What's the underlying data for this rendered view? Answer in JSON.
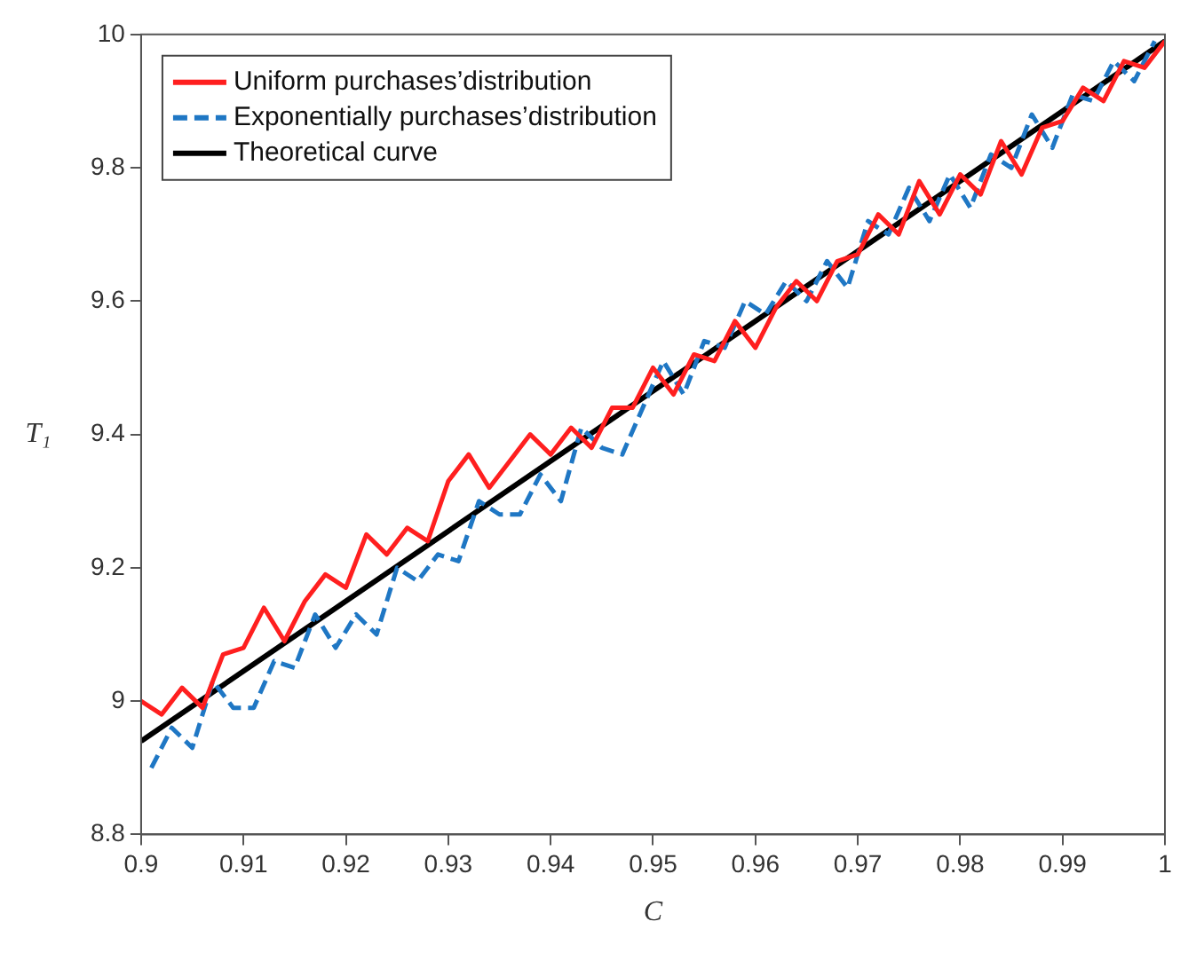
{
  "chart_data": {
    "type": "line",
    "xlabel": "C",
    "ylabel": "T₁",
    "xlim": [
      0.9,
      1
    ],
    "xticks": [
      0.9,
      0.91,
      0.92,
      0.93,
      0.94,
      0.95,
      0.96,
      0.97,
      0.98,
      0.99,
      1
    ],
    "ylim": [
      8.8,
      10
    ],
    "yticks": [
      8.8,
      9,
      9.2,
      9.4,
      9.6,
      9.8,
      10
    ],
    "grid": false,
    "legend": "top left",
    "marker": "none",
    "series": [
      {
        "name": "Uniform purchases’distribution",
        "color": "#ff1f1f",
        "line_style": "solid",
        "x": [
          0.9,
          0.902,
          0.904,
          0.906,
          0.908,
          0.91,
          0.912,
          0.914,
          0.916,
          0.918,
          0.92,
          0.922,
          0.924,
          0.926,
          0.928,
          0.93,
          0.932,
          0.934,
          0.936,
          0.938,
          0.94,
          0.942,
          0.944,
          0.946,
          0.948,
          0.95,
          0.952,
          0.954,
          0.956,
          0.958,
          0.96,
          0.962,
          0.964,
          0.966,
          0.968,
          0.97,
          0.972,
          0.974,
          0.976,
          0.978,
          0.98,
          0.982,
          0.984,
          0.986,
          0.988,
          0.99,
          0.992,
          0.994,
          0.996,
          0.998,
          1
        ],
        "values": [
          9.0,
          8.98,
          9.02,
          8.99,
          9.07,
          9.08,
          9.14,
          9.09,
          9.15,
          9.19,
          9.17,
          9.25,
          9.22,
          9.26,
          9.24,
          9.33,
          9.37,
          9.32,
          9.36,
          9.4,
          9.37,
          9.41,
          9.38,
          9.44,
          9.44,
          9.5,
          9.46,
          9.52,
          9.51,
          9.57,
          9.53,
          9.59,
          9.63,
          9.6,
          9.66,
          9.67,
          9.73,
          9.7,
          9.78,
          9.73,
          9.79,
          9.76,
          9.84,
          9.79,
          9.86,
          9.87,
          9.92,
          9.9,
          9.96,
          9.95,
          9.99
        ]
      },
      {
        "name": "Exponentially purchases’distribution",
        "color": "#1f77c4",
        "line_style": "dashed",
        "x": [
          0.901,
          0.903,
          0.905,
          0.907,
          0.909,
          0.911,
          0.913,
          0.915,
          0.917,
          0.919,
          0.921,
          0.923,
          0.925,
          0.927,
          0.929,
          0.931,
          0.933,
          0.935,
          0.937,
          0.939,
          0.941,
          0.943,
          0.945,
          0.947,
          0.949,
          0.951,
          0.953,
          0.955,
          0.957,
          0.959,
          0.961,
          0.963,
          0.965,
          0.967,
          0.969,
          0.971,
          0.973,
          0.975,
          0.977,
          0.979,
          0.981,
          0.983,
          0.985,
          0.987,
          0.989,
          0.991,
          0.993,
          0.995,
          0.997,
          0.999
        ],
        "values": [
          8.9,
          8.96,
          8.93,
          9.03,
          8.99,
          8.99,
          9.06,
          9.05,
          9.13,
          9.08,
          9.13,
          9.1,
          9.2,
          9.18,
          9.22,
          9.21,
          9.3,
          9.28,
          9.28,
          9.34,
          9.3,
          9.41,
          9.38,
          9.37,
          9.44,
          9.51,
          9.46,
          9.54,
          9.53,
          9.6,
          9.58,
          9.63,
          9.6,
          9.66,
          9.62,
          9.72,
          9.7,
          9.77,
          9.72,
          9.79,
          9.74,
          9.82,
          9.8,
          9.88,
          9.83,
          9.91,
          9.9,
          9.96,
          9.93,
          9.99
        ]
      },
      {
        "name": "Theoretical curve",
        "color": "#000000",
        "line_style": "solid",
        "x": [
          0.9,
          1
        ],
        "values": [
          8.94,
          9.99
        ]
      }
    ]
  }
}
